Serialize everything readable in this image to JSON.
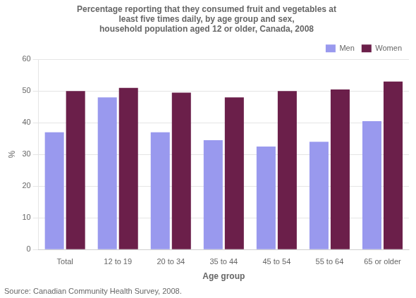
{
  "chart_data": {
    "type": "bar",
    "title": "Percentage reporting that they consumed fruit and vegetables at\nleast five times daily, by age group and sex,\nhousehold population aged 12 or older, Canada, 2008",
    "categories": [
      "Total",
      "12 to 19",
      "20 to 34",
      "35 to 44",
      "45 to 54",
      "55 to 64",
      "65 or older"
    ],
    "series": [
      {
        "name": "Men",
        "color": "#9999ee",
        "values": [
          37,
          48,
          37,
          34.5,
          32.5,
          34,
          40.5
        ]
      },
      {
        "name": "Women",
        "color": "#6b1f4a",
        "values": [
          50,
          51,
          49.5,
          48,
          50,
          50.5,
          53
        ]
      }
    ],
    "xlabel": "Age group",
    "ylabel": "%",
    "ylim": [
      0,
      60
    ],
    "yticks": [
      0,
      10,
      20,
      30,
      40,
      50,
      60
    ],
    "grid": true,
    "legend": "upper right",
    "annotations": [
      "Source: Canadian Community Health Survey, 2008."
    ]
  }
}
